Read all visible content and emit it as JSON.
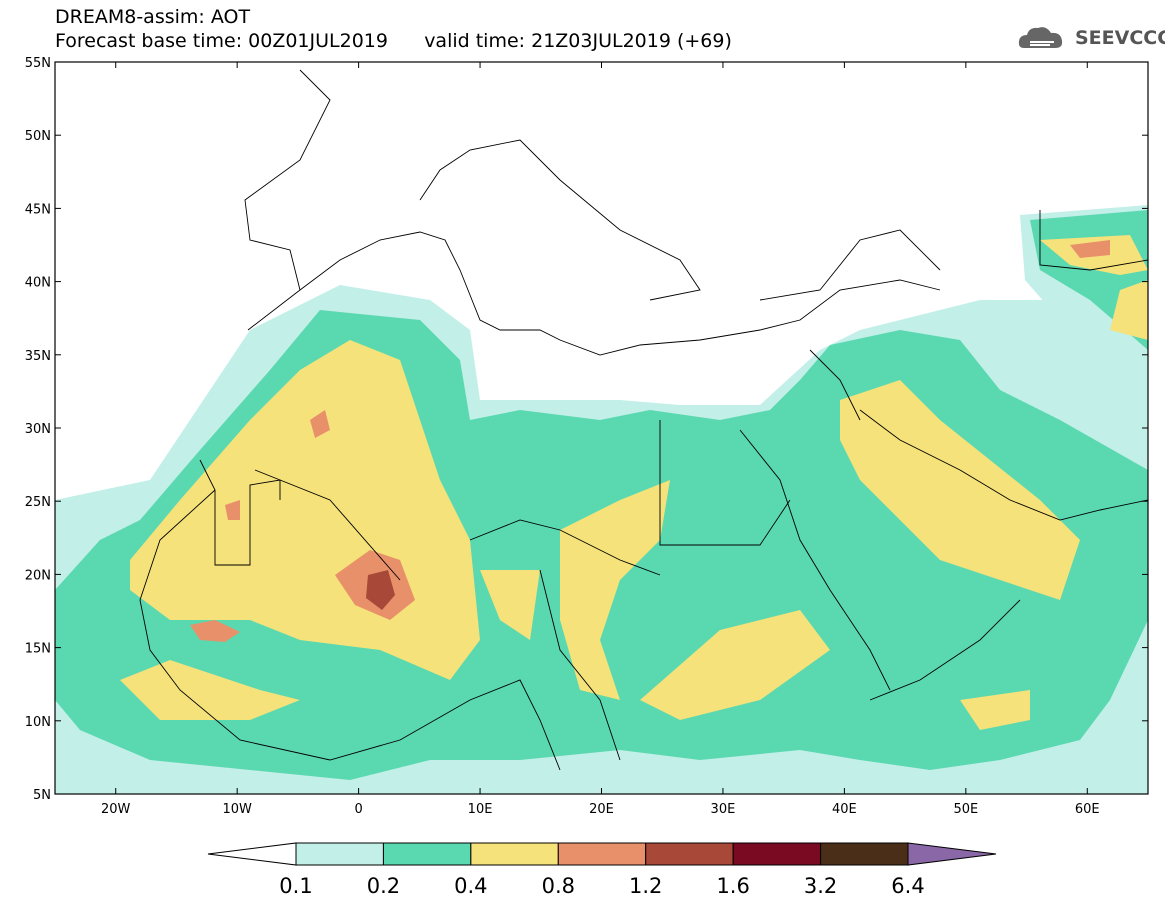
{
  "header": {
    "title_line1": "DREAM8-assim: AOT",
    "title_line2": "Forecast base time: 00Z01JUL2019      valid time: 21Z03JUL2019 (+69)"
  },
  "logo": {
    "text": "SEEVCCC",
    "icon": "cloud-icon"
  },
  "map": {
    "lon_range": [
      -25,
      65
    ],
    "lat_range": [
      5,
      55
    ],
    "lat_labels": [
      "55N",
      "50N",
      "45N",
      "40N",
      "35N",
      "30N",
      "25N",
      "20N",
      "15N",
      "10N",
      "5N"
    ],
    "lon_labels": [
      "20W",
      "10W",
      "0",
      "10E",
      "20E",
      "30E",
      "40E",
      "50E",
      "60E"
    ],
    "land_color": "#ffffff",
    "border_color": "#000000"
  },
  "colorbar": {
    "labels": [
      "0.1",
      "0.2",
      "0.4",
      "0.8",
      "1.2",
      "1.6",
      "3.2",
      "6.4"
    ],
    "colors": [
      "#ffffff",
      "#c2efe8",
      "#5ad8b0",
      "#f5e27a",
      "#e8906a",
      "#a84838",
      "#7a0a22",
      "#4a2e18",
      "#8a68a8"
    ]
  }
}
